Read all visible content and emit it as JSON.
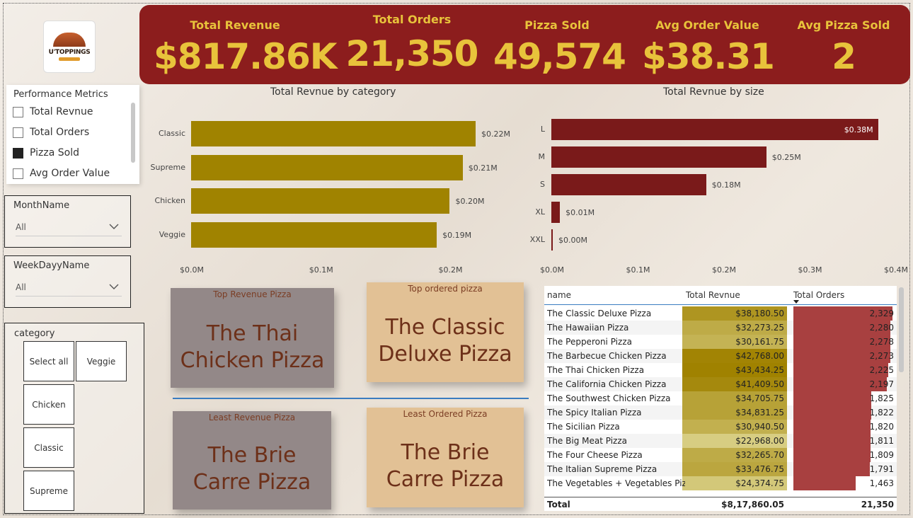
{
  "logo": {
    "text": "U'TOPPINGS"
  },
  "kpis": [
    {
      "label": "Total Revenue",
      "value": "$817.86K"
    },
    {
      "label": "Total Orders",
      "value": "21,350"
    },
    {
      "label": "Pizza Sold",
      "value": "49,574"
    },
    {
      "label": "Avg Order Value",
      "value": "$38.31"
    },
    {
      "label": "Avg Pizza Sold",
      "value": "2"
    }
  ],
  "performance_metrics": {
    "title": "Performance Metrics",
    "items": [
      {
        "label": "Total Revnue",
        "checked": false
      },
      {
        "label": "Total Orders",
        "checked": false
      },
      {
        "label": "Pizza Sold",
        "checked": true
      },
      {
        "label": "Avg Order Value",
        "checked": false
      }
    ]
  },
  "month_slicer": {
    "title": "MonthName",
    "value": "All"
  },
  "weekday_slicer": {
    "title": "WeekDayyName",
    "value": "All"
  },
  "category_slicer": {
    "title": "category",
    "options": [
      "Select all",
      "Veggie",
      "Chicken",
      "Classic",
      "Supreme"
    ]
  },
  "colors": {
    "banner": "#8c1d1d",
    "kpi_text": "#e8c33b",
    "category_bar": "#a08300",
    "size_bar": "#7a1a1a",
    "orders_bar": "#a84040",
    "card_gray": "#938888",
    "card_tan": "#e2c195"
  },
  "cards": {
    "top_revenue": {
      "title": "Top Revenue Pizza",
      "line1": "The Thai",
      "line2": "Chicken Pizza"
    },
    "top_ordered": {
      "title": "Top ordered pizza",
      "line1": "The Classic",
      "line2": "Deluxe Pizza"
    },
    "least_revenue": {
      "title": "Least Revenue Pizza",
      "line1": "The Brie",
      "line2": "Carre Pizza"
    },
    "least_ordered": {
      "title": "Least Ordered Pizza",
      "line1": "The Brie",
      "line2": "Carre Pizza"
    }
  },
  "chart_data": [
    {
      "type": "bar",
      "orientation": "horizontal",
      "title": "Total Revnue by category",
      "categories": [
        "Classic",
        "Supreme",
        "Chicken",
        "Veggie"
      ],
      "values": [
        0.22,
        0.21,
        0.2,
        0.19
      ],
      "value_labels": [
        "$0.22M",
        "$0.21M",
        "$0.20M",
        "$0.19M"
      ],
      "xlim": [
        0,
        0.22
      ],
      "x_ticks": [
        "$0.0M",
        "$0.1M",
        "$0.2M"
      ]
    },
    {
      "type": "bar",
      "orientation": "horizontal",
      "title": "Total Revnue by size",
      "categories": [
        "L",
        "M",
        "S",
        "XL",
        "XXL"
      ],
      "values": [
        0.38,
        0.25,
        0.18,
        0.01,
        0.0
      ],
      "value_labels": [
        "$0.38M",
        "$0.25M",
        "$0.18M",
        "$0.01M",
        "$0.00M"
      ],
      "xlim": [
        0,
        0.4
      ],
      "x_ticks": [
        "$0.0M",
        "$0.1M",
        "$0.2M",
        "$0.3M",
        "$0.4M"
      ]
    }
  ],
  "table": {
    "headers": [
      "name",
      "Total Revnue",
      "Total Orders"
    ],
    "rows": [
      {
        "name": "The Classic Deluxe Pizza",
        "revenue": "$38,180.50",
        "rev": 38180.5,
        "orders": "2,329",
        "ord": 2329
      },
      {
        "name": "The Hawaiian Pizza",
        "revenue": "$32,273.25",
        "rev": 32273.25,
        "orders": "2,280",
        "ord": 2280
      },
      {
        "name": "The Pepperoni Pizza",
        "revenue": "$30,161.75",
        "rev": 30161.75,
        "orders": "2,278",
        "ord": 2278
      },
      {
        "name": "The Barbecue Chicken Pizza",
        "revenue": "$42,768.00",
        "rev": 42768,
        "orders": "2,273",
        "ord": 2273
      },
      {
        "name": "The Thai Chicken Pizza",
        "revenue": "$43,434.25",
        "rev": 43434.25,
        "orders": "2,225",
        "ord": 2225
      },
      {
        "name": "The California Chicken Pizza",
        "revenue": "$41,409.50",
        "rev": 41409.5,
        "orders": "2,197",
        "ord": 2197
      },
      {
        "name": "The Southwest Chicken Pizza",
        "revenue": "$34,705.75",
        "rev": 34705.75,
        "orders": "1,825",
        "ord": 1825
      },
      {
        "name": "The Spicy Italian Pizza",
        "revenue": "$34,831.25",
        "rev": 34831.25,
        "orders": "1,822",
        "ord": 1822
      },
      {
        "name": "The Sicilian Pizza",
        "revenue": "$30,940.50",
        "rev": 30940.5,
        "orders": "1,820",
        "ord": 1820
      },
      {
        "name": "The Big Meat Pizza",
        "revenue": "$22,968.00",
        "rev": 22968,
        "orders": "1,811",
        "ord": 1811
      },
      {
        "name": "The Four Cheese Pizza",
        "revenue": "$32,265.70",
        "rev": 32265.7,
        "orders": "1,809",
        "ord": 1809
      },
      {
        "name": "The Italian Supreme Pizza",
        "revenue": "$33,476.75",
        "rev": 33476.75,
        "orders": "1,791",
        "ord": 1791
      },
      {
        "name": "The Vegetables + Vegetables Pizza",
        "revenue": "$24,374.75",
        "rev": 24374.75,
        "orders": "1,463",
        "ord": 1463
      }
    ],
    "total": {
      "label": "Total",
      "revenue": "$8,17,860.05",
      "orders": "21,350"
    }
  }
}
